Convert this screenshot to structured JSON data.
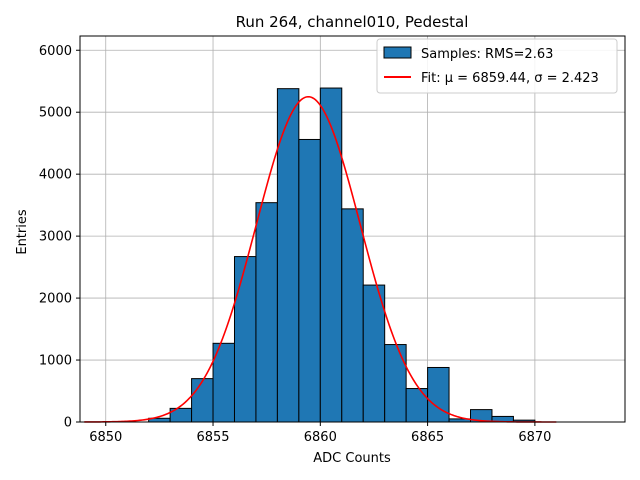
{
  "chart_data": {
    "type": "bar",
    "title": "Run 264, channel010, Pedestal",
    "xlabel": "ADC Counts",
    "ylabel": "Entries",
    "xlim": [
      6848.8,
      6874.2
    ],
    "ylim": [
      0,
      6230
    ],
    "xticks": [
      6850,
      6855,
      6860,
      6865,
      6870
    ],
    "yticks": [
      0,
      1000,
      2000,
      3000,
      4000,
      5000,
      6000
    ],
    "grid": true,
    "legend_position": "top-right",
    "histogram": {
      "name": "Samples: RMS=2.63",
      "color": "#1f77b4",
      "bin_width": 1,
      "bins_left": [
        6852,
        6853,
        6854,
        6855,
        6856,
        6857,
        6858,
        6859,
        6860,
        6861,
        6862,
        6863,
        6864,
        6865,
        6866,
        6867,
        6868,
        6869
      ],
      "values": [
        60,
        220,
        700,
        1270,
        2670,
        3540,
        5380,
        4560,
        5390,
        3440,
        2210,
        1250,
        540,
        880,
        50,
        200,
        90,
        30
      ]
    },
    "fit": {
      "name": "Fit: μ = 6859.44, σ = 2.423",
      "color": "#ff0000",
      "mu": 6859.44,
      "sigma": 2.423,
      "amplitude": 5250,
      "x_range": [
        6849,
        6871
      ]
    }
  }
}
